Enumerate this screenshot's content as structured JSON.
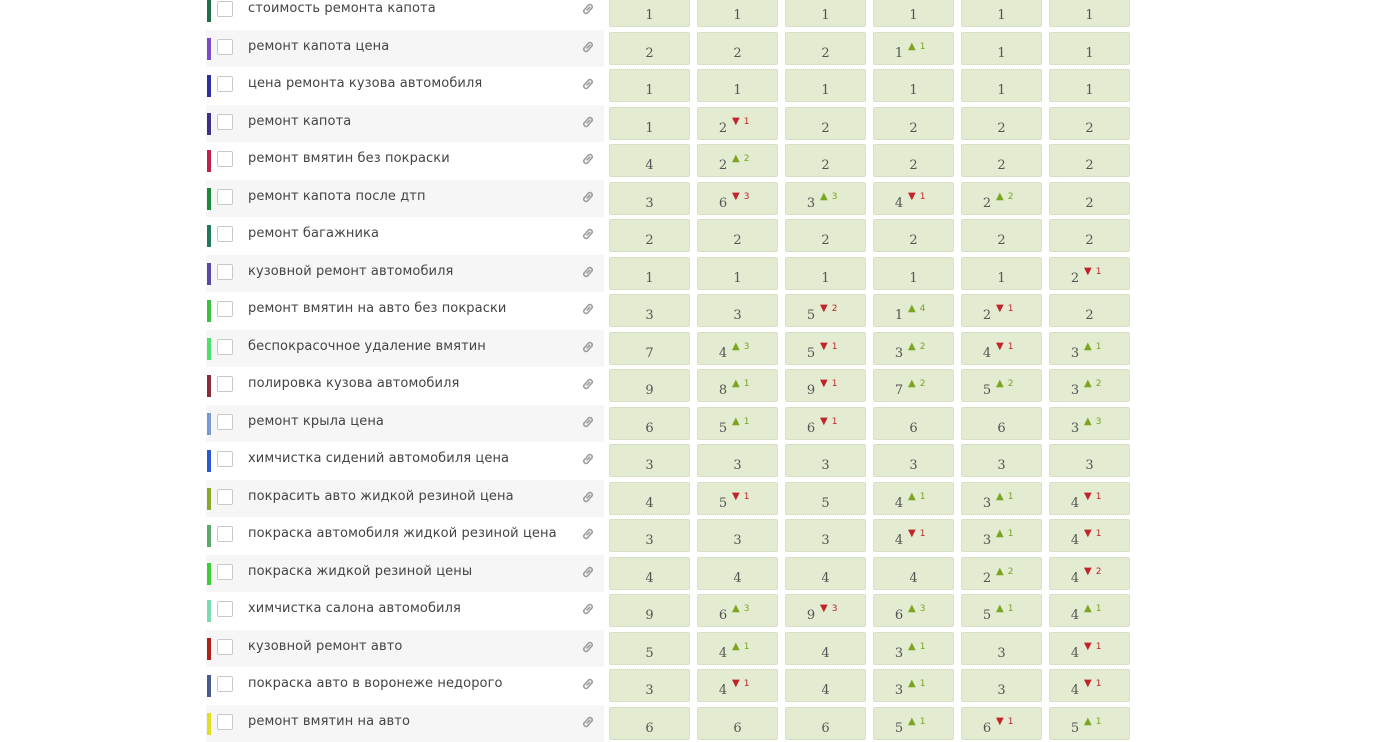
{
  "colors": {
    "cell_bg": "#e3ebd1",
    "up": "#7aa520",
    "down": "#c0242a"
  },
  "rows": [
    {
      "keyword": "стоимость ремонта капота",
      "color": "#1f6f4a",
      "positions": [
        {
          "value": "1",
          "change": null,
          "dir": null
        },
        {
          "value": "1",
          "change": null,
          "dir": null
        },
        {
          "value": "1",
          "change": null,
          "dir": null
        },
        {
          "value": "1",
          "change": null,
          "dir": null
        },
        {
          "value": "1",
          "change": null,
          "dir": null
        },
        {
          "value": "1",
          "change": null,
          "dir": null
        }
      ]
    },
    {
      "keyword": "ремонт капота цена",
      "color": "#7b4cc9",
      "positions": [
        {
          "value": "2",
          "change": null,
          "dir": null
        },
        {
          "value": "2",
          "change": null,
          "dir": null
        },
        {
          "value": "2",
          "change": null,
          "dir": null
        },
        {
          "value": "1",
          "change": "1",
          "dir": "up"
        },
        {
          "value": "1",
          "change": null,
          "dir": null
        },
        {
          "value": "1",
          "change": null,
          "dir": null
        }
      ]
    },
    {
      "keyword": "цена ремонта кузова автомобиля",
      "color": "#2b2fa0",
      "positions": [
        {
          "value": "1",
          "change": null,
          "dir": null
        },
        {
          "value": "1",
          "change": null,
          "dir": null
        },
        {
          "value": "1",
          "change": null,
          "dir": null
        },
        {
          "value": "1",
          "change": null,
          "dir": null
        },
        {
          "value": "1",
          "change": null,
          "dir": null
        },
        {
          "value": "1",
          "change": null,
          "dir": null
        }
      ]
    },
    {
      "keyword": "ремонт капота",
      "color": "#3b2f8a",
      "positions": [
        {
          "value": "1",
          "change": null,
          "dir": null
        },
        {
          "value": "2",
          "change": "1",
          "dir": "down"
        },
        {
          "value": "2",
          "change": null,
          "dir": null
        },
        {
          "value": "2",
          "change": null,
          "dir": null
        },
        {
          "value": "2",
          "change": null,
          "dir": null
        },
        {
          "value": "2",
          "change": null,
          "dir": null
        }
      ]
    },
    {
      "keyword": "ремонт вмятин без покраски",
      "color": "#c0204a",
      "positions": [
        {
          "value": "4",
          "change": null,
          "dir": null
        },
        {
          "value": "2",
          "change": "2",
          "dir": "up"
        },
        {
          "value": "2",
          "change": null,
          "dir": null
        },
        {
          "value": "2",
          "change": null,
          "dir": null
        },
        {
          "value": "2",
          "change": null,
          "dir": null
        },
        {
          "value": "2",
          "change": null,
          "dir": null
        }
      ]
    },
    {
      "keyword": "ремонт капота после дтп",
      "color": "#1a8a3a",
      "positions": [
        {
          "value": "3",
          "change": null,
          "dir": null
        },
        {
          "value": "6",
          "change": "3",
          "dir": "down"
        },
        {
          "value": "3",
          "change": "3",
          "dir": "up"
        },
        {
          "value": "4",
          "change": "1",
          "dir": "down"
        },
        {
          "value": "2",
          "change": "2",
          "dir": "up"
        },
        {
          "value": "2",
          "change": null,
          "dir": null
        }
      ]
    },
    {
      "keyword": "ремонт багажника",
      "color": "#1f7a5a",
      "positions": [
        {
          "value": "2",
          "change": null,
          "dir": null
        },
        {
          "value": "2",
          "change": null,
          "dir": null
        },
        {
          "value": "2",
          "change": null,
          "dir": null
        },
        {
          "value": "2",
          "change": null,
          "dir": null
        },
        {
          "value": "2",
          "change": null,
          "dir": null
        },
        {
          "value": "2",
          "change": null,
          "dir": null
        }
      ]
    },
    {
      "keyword": "кузовной ремонт автомобиля",
      "color": "#5a4aa8",
      "positions": [
        {
          "value": "1",
          "change": null,
          "dir": null
        },
        {
          "value": "1",
          "change": null,
          "dir": null
        },
        {
          "value": "1",
          "change": null,
          "dir": null
        },
        {
          "value": "1",
          "change": null,
          "dir": null
        },
        {
          "value": "1",
          "change": null,
          "dir": null
        },
        {
          "value": "2",
          "change": "1",
          "dir": "down"
        }
      ]
    },
    {
      "keyword": "ремонт вмятин на авто без покраски",
      "color": "#3fbf3f",
      "positions": [
        {
          "value": "3",
          "change": null,
          "dir": null
        },
        {
          "value": "3",
          "change": null,
          "dir": null
        },
        {
          "value": "5",
          "change": "2",
          "dir": "down"
        },
        {
          "value": "1",
          "change": "4",
          "dir": "up"
        },
        {
          "value": "2",
          "change": "1",
          "dir": "down"
        },
        {
          "value": "2",
          "change": null,
          "dir": null
        }
      ]
    },
    {
      "keyword": "беспокрасочное удаление вмятин",
      "color": "#4de06a",
      "positions": [
        {
          "value": "7",
          "change": null,
          "dir": null
        },
        {
          "value": "4",
          "change": "3",
          "dir": "up"
        },
        {
          "value": "5",
          "change": "1",
          "dir": "down"
        },
        {
          "value": "3",
          "change": "2",
          "dir": "up"
        },
        {
          "value": "4",
          "change": "1",
          "dir": "down"
        },
        {
          "value": "3",
          "change": "1",
          "dir": "up"
        }
      ]
    },
    {
      "keyword": "полировка кузова автомобиля",
      "color": "#8a2a3a",
      "positions": [
        {
          "value": "9",
          "change": null,
          "dir": null
        },
        {
          "value": "8",
          "change": "1",
          "dir": "up"
        },
        {
          "value": "9",
          "change": "1",
          "dir": "down"
        },
        {
          "value": "7",
          "change": "2",
          "dir": "up"
        },
        {
          "value": "5",
          "change": "2",
          "dir": "up"
        },
        {
          "value": "3",
          "change": "2",
          "dir": "up"
        }
      ]
    },
    {
      "keyword": "ремонт крыла цена",
      "color": "#7a9ad0",
      "positions": [
        {
          "value": "6",
          "change": null,
          "dir": null
        },
        {
          "value": "5",
          "change": "1",
          "dir": "up"
        },
        {
          "value": "6",
          "change": "1",
          "dir": "down"
        },
        {
          "value": "6",
          "change": null,
          "dir": null
        },
        {
          "value": "6",
          "change": null,
          "dir": null
        },
        {
          "value": "3",
          "change": "3",
          "dir": "up"
        }
      ]
    },
    {
      "keyword": "химчистка сидений автомобиля цена",
      "color": "#2a5ad0",
      "positions": [
        {
          "value": "3",
          "change": null,
          "dir": null
        },
        {
          "value": "3",
          "change": null,
          "dir": null
        },
        {
          "value": "3",
          "change": null,
          "dir": null
        },
        {
          "value": "3",
          "change": null,
          "dir": null
        },
        {
          "value": "3",
          "change": null,
          "dir": null
        },
        {
          "value": "3",
          "change": null,
          "dir": null
        }
      ]
    },
    {
      "keyword": "покрасить авто жидкой резиной цена",
      "color": "#8aa82a",
      "positions": [
        {
          "value": "4",
          "change": null,
          "dir": null
        },
        {
          "value": "5",
          "change": "1",
          "dir": "down"
        },
        {
          "value": "5",
          "change": null,
          "dir": null
        },
        {
          "value": "4",
          "change": "1",
          "dir": "up"
        },
        {
          "value": "3",
          "change": "1",
          "dir": "up"
        },
        {
          "value": "4",
          "change": "1",
          "dir": "down"
        }
      ]
    },
    {
      "keyword": "покраска автомобиля жидкой резиной цена",
      "color": "#5aaa6a",
      "positions": [
        {
          "value": "3",
          "change": null,
          "dir": null
        },
        {
          "value": "3",
          "change": null,
          "dir": null
        },
        {
          "value": "3",
          "change": null,
          "dir": null
        },
        {
          "value": "4",
          "change": "1",
          "dir": "down"
        },
        {
          "value": "3",
          "change": "1",
          "dir": "up"
        },
        {
          "value": "4",
          "change": "1",
          "dir": "down"
        }
      ]
    },
    {
      "keyword": "покраска жидкой резиной цены",
      "color": "#3ad03a",
      "positions": [
        {
          "value": "4",
          "change": null,
          "dir": null
        },
        {
          "value": "4",
          "change": null,
          "dir": null
        },
        {
          "value": "4",
          "change": null,
          "dir": null
        },
        {
          "value": "4",
          "change": null,
          "dir": null
        },
        {
          "value": "2",
          "change": "2",
          "dir": "up"
        },
        {
          "value": "4",
          "change": "2",
          "dir": "down"
        }
      ]
    },
    {
      "keyword": "химчистка салона автомобиля",
      "color": "#7adab0",
      "positions": [
        {
          "value": "9",
          "change": null,
          "dir": null
        },
        {
          "value": "6",
          "change": "3",
          "dir": "up"
        },
        {
          "value": "9",
          "change": "3",
          "dir": "down"
        },
        {
          "value": "6",
          "change": "3",
          "dir": "up"
        },
        {
          "value": "5",
          "change": "1",
          "dir": "up"
        },
        {
          "value": "4",
          "change": "1",
          "dir": "up"
        }
      ]
    },
    {
      "keyword": "кузовной ремонт авто",
      "color": "#b0201a",
      "positions": [
        {
          "value": "5",
          "change": null,
          "dir": null
        },
        {
          "value": "4",
          "change": "1",
          "dir": "up"
        },
        {
          "value": "4",
          "change": null,
          "dir": null
        },
        {
          "value": "3",
          "change": "1",
          "dir": "up"
        },
        {
          "value": "3",
          "change": null,
          "dir": null
        },
        {
          "value": "4",
          "change": "1",
          "dir": "down"
        }
      ]
    },
    {
      "keyword": "покраска авто в воронеже недорого",
      "color": "#4a5a8a",
      "positions": [
        {
          "value": "3",
          "change": null,
          "dir": null
        },
        {
          "value": "4",
          "change": "1",
          "dir": "down"
        },
        {
          "value": "4",
          "change": null,
          "dir": null
        },
        {
          "value": "3",
          "change": "1",
          "dir": "up"
        },
        {
          "value": "3",
          "change": null,
          "dir": null
        },
        {
          "value": "4",
          "change": "1",
          "dir": "down"
        }
      ]
    },
    {
      "keyword": "ремонт вмятин на авто",
      "color": "#e0e020",
      "positions": [
        {
          "value": "6",
          "change": null,
          "dir": null
        },
        {
          "value": "6",
          "change": null,
          "dir": null
        },
        {
          "value": "6",
          "change": null,
          "dir": null
        },
        {
          "value": "5",
          "change": "1",
          "dir": "up"
        },
        {
          "value": "6",
          "change": "1",
          "dir": "down"
        },
        {
          "value": "5",
          "change": "1",
          "dir": "up"
        }
      ]
    }
  ]
}
